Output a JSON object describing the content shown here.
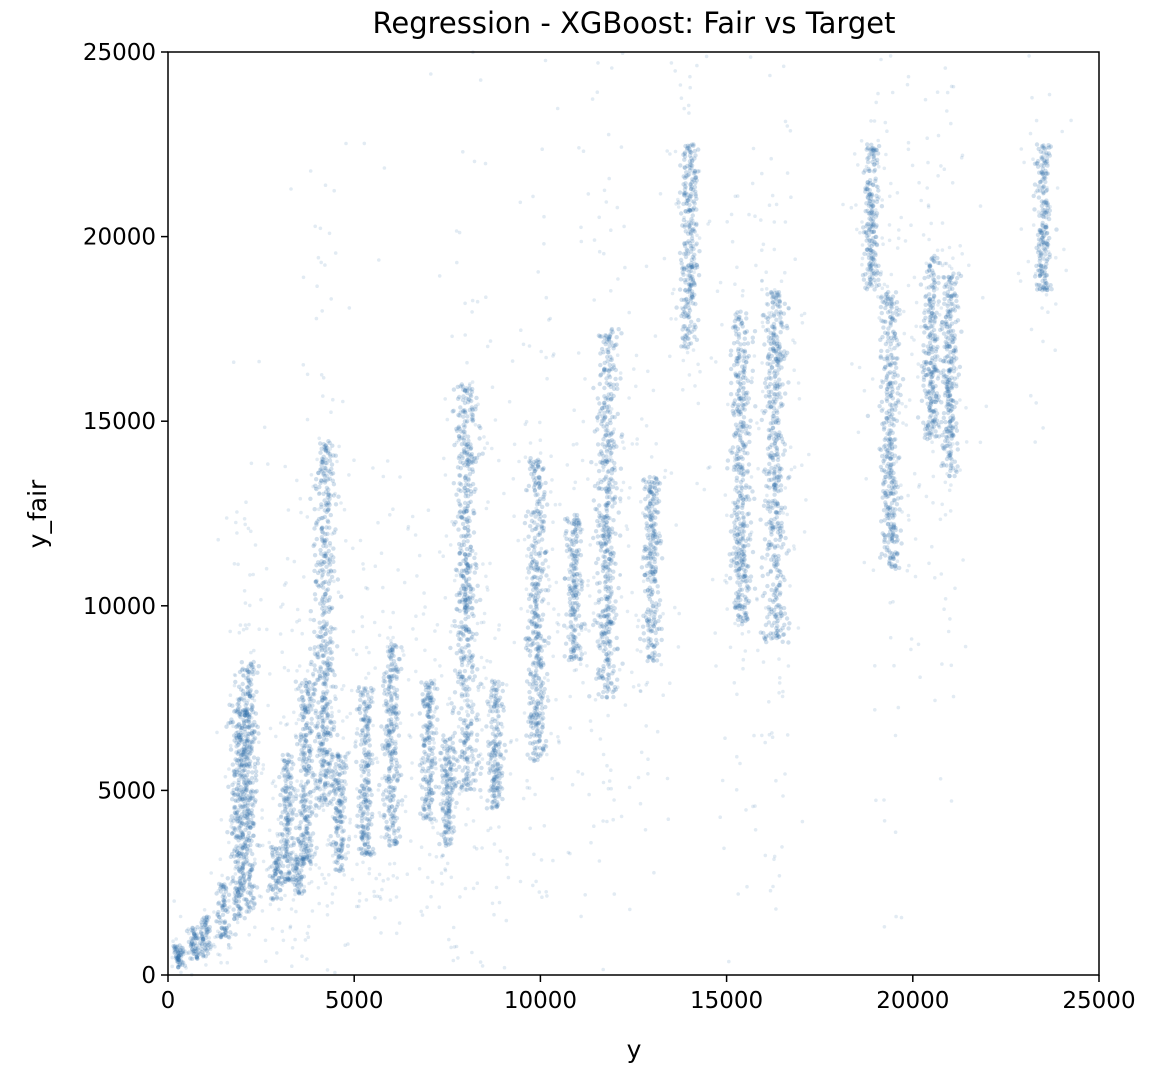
{
  "chart_data": {
    "type": "scatter",
    "title": "Regression - XGBoost: Fair vs Target",
    "xlabel": "y",
    "ylabel": "y_fair",
    "xlim": [
      0,
      25000
    ],
    "ylim": [
      0,
      25000
    ],
    "xticks": [
      "0",
      "5000",
      "10000",
      "15000",
      "20000",
      "25000"
    ],
    "yticks": [
      "0",
      "5000",
      "10000",
      "15000",
      "20000",
      "25000"
    ],
    "grid": false,
    "marker_color": "#2f6fa8",
    "series": [
      {
        "clusters": [
          {
            "x": 300,
            "y_min": 200,
            "y_max": 800
          },
          {
            "x": 700,
            "y_min": 400,
            "y_max": 1300
          },
          {
            "x": 1000,
            "y_min": 500,
            "y_max": 1600
          },
          {
            "x": 1500,
            "y_min": 1000,
            "y_max": 2500
          },
          {
            "x": 1900,
            "y_min": 1500,
            "y_max": 7500
          },
          {
            "x": 2150,
            "y_min": 1800,
            "y_max": 8500
          },
          {
            "x": 2900,
            "y_min": 2000,
            "y_max": 3500
          },
          {
            "x": 3200,
            "y_min": 2500,
            "y_max": 6000
          },
          {
            "x": 3500,
            "y_min": 2200,
            "y_max": 3200
          },
          {
            "x": 3700,
            "y_min": 3000,
            "y_max": 8000
          },
          {
            "x": 4200,
            "y_min": 4500,
            "y_max": 14500
          },
          {
            "x": 4600,
            "y_min": 2800,
            "y_max": 6000
          },
          {
            "x": 5300,
            "y_min": 3200,
            "y_max": 7800
          },
          {
            "x": 6000,
            "y_min": 3500,
            "y_max": 9000
          },
          {
            "x": 7000,
            "y_min": 4200,
            "y_max": 8000
          },
          {
            "x": 7500,
            "y_min": 3500,
            "y_max": 6500
          },
          {
            "x": 8000,
            "y_min": 5000,
            "y_max": 16000
          },
          {
            "x": 8800,
            "y_min": 4500,
            "y_max": 8000
          },
          {
            "x": 9900,
            "y_min": 5800,
            "y_max": 14000
          },
          {
            "x": 10900,
            "y_min": 8500,
            "y_max": 12500
          },
          {
            "x": 11800,
            "y_min": 7500,
            "y_max": 17500
          },
          {
            "x": 13000,
            "y_min": 8500,
            "y_max": 13500
          },
          {
            "x": 14000,
            "y_min": 17000,
            "y_max": 22500
          },
          {
            "x": 15400,
            "y_min": 9500,
            "y_max": 18000
          },
          {
            "x": 16300,
            "y_min": 9000,
            "y_max": 18500
          },
          {
            "x": 18900,
            "y_min": 18500,
            "y_max": 22500
          },
          {
            "x": 19400,
            "y_min": 11000,
            "y_max": 18500
          },
          {
            "x": 20500,
            "y_min": 14500,
            "y_max": 19500
          },
          {
            "x": 21000,
            "y_min": 13500,
            "y_max": 19000
          },
          {
            "x": 23500,
            "y_min": 18500,
            "y_max": 22500
          }
        ]
      }
    ]
  }
}
